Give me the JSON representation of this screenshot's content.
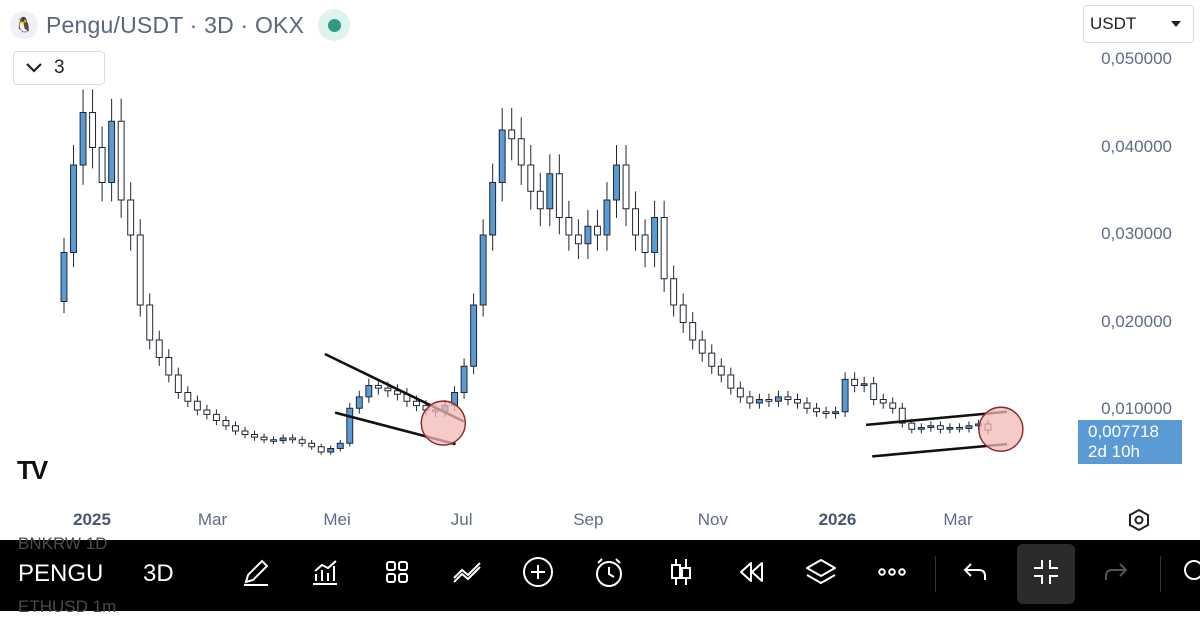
{
  "header": {
    "title": "Pengu/USDT · 3D · OKX",
    "logo_icon": "pengu-logo-icon",
    "status_color": "#2e9b82"
  },
  "indicator_button": {
    "label": "3",
    "icon": "chevron-down-icon"
  },
  "currency_selector": {
    "value": "USDT",
    "icon": "chevron-down-icon"
  },
  "last_price": {
    "value": "0,007718",
    "countdown": "2d 10h",
    "color": "#5b9bd5"
  },
  "toolbar": {
    "symbol": "PENGU",
    "timeframe": "3D",
    "ghost_top": "BNKRW 1D",
    "ghost_bottom": "ETHUSD 1m",
    "icons": [
      "pen-icon",
      "indicators-icon",
      "layout-grid-icon",
      "drawings-icon",
      "add-icon",
      "alert-clock-icon",
      "candles-icon",
      "replay-icon",
      "layers-icon",
      "more-icon",
      "undo-icon",
      "collapse-icon",
      "redo-icon",
      "search-icon"
    ]
  },
  "chart_data": {
    "type": "candlestick",
    "title": "Pengu/USDT · 3D · OKX",
    "y_unit": "USDT",
    "y_ticks": [
      "0,050000",
      "0,040000",
      "0,030000",
      "0,020000",
      "0,010000"
    ],
    "ylim": [
      0,
      0.05
    ],
    "x_ticks": [
      {
        "label": "2025",
        "date": "2025-01-01",
        "bold": true
      },
      {
        "label": "Mar",
        "date": "2025-03-01",
        "bold": false
      },
      {
        "label": "Mei",
        "date": "2025-05-01",
        "bold": false
      },
      {
        "label": "Jul",
        "date": "2025-07-01",
        "bold": false
      },
      {
        "label": "Sep",
        "date": "2025-09-01",
        "bold": false
      },
      {
        "label": "Nov",
        "date": "2025-11-01",
        "bold": false
      },
      {
        "label": "2026",
        "date": "2026-01-01",
        "bold": true
      },
      {
        "label": "Mar",
        "date": "2026-03-01",
        "bold": false
      }
    ],
    "up_color": "#5b9bd5",
    "down_color": "#ffffff",
    "series": [
      {
        "name": "Pengu/USDT",
        "candles_close": [
          0.028,
          0.038,
          0.044,
          0.04,
          0.036,
          0.043,
          0.034,
          0.03,
          0.022,
          0.018,
          0.016,
          0.014,
          0.012,
          0.011,
          0.01,
          0.0095,
          0.0088,
          0.0082,
          0.0076,
          0.0072,
          0.0069,
          0.0066,
          0.0065,
          0.0068,
          0.0066,
          0.0062,
          0.0058,
          0.0052,
          0.0056,
          0.0062,
          0.0102,
          0.0115,
          0.0128,
          0.0125,
          0.0122,
          0.0118,
          0.011,
          0.0105,
          0.01,
          0.0098,
          0.0105,
          0.012,
          0.015,
          0.022,
          0.03,
          0.036,
          0.042,
          0.041,
          0.038,
          0.035,
          0.033,
          0.037,
          0.032,
          0.03,
          0.029,
          0.031,
          0.03,
          0.034,
          0.038,
          0.033,
          0.03,
          0.028,
          0.032,
          0.025,
          0.022,
          0.02,
          0.018,
          0.0165,
          0.015,
          0.014,
          0.0125,
          0.0115,
          0.0108,
          0.0112,
          0.011,
          0.0115,
          0.0112,
          0.0108,
          0.0102,
          0.0098,
          0.0096,
          0.0098,
          0.0135,
          0.0128,
          0.013,
          0.0112,
          0.0108,
          0.0102,
          0.0085,
          0.0078,
          0.008,
          0.0082,
          0.0078,
          0.008,
          0.0079,
          0.0082,
          0.0084,
          0.0077
        ]
      }
    ],
    "annotations": [
      {
        "type": "trendline",
        "from": [
          "2025-04-25",
          0.0164
        ],
        "to": [
          "2025-07-02",
          0.0087
        ]
      },
      {
        "type": "trendline",
        "from": [
          "2025-04-30",
          0.0097
        ],
        "to": [
          "2025-06-28",
          0.0061
        ]
      },
      {
        "type": "circle",
        "at": [
          "2025-06-22",
          0.0085
        ],
        "fill": "#f4b8b8"
      },
      {
        "type": "trendline",
        "from": [
          "2026-01-15",
          0.0083
        ],
        "to": [
          "2026-03-25",
          0.0098
        ]
      },
      {
        "type": "trendline",
        "from": [
          "2026-01-18",
          0.0047
        ],
        "to": [
          "2026-03-25",
          0.0061
        ]
      },
      {
        "type": "circle",
        "at": [
          "2026-03-22",
          0.0078
        ],
        "fill": "#f4b8b8"
      }
    ]
  }
}
